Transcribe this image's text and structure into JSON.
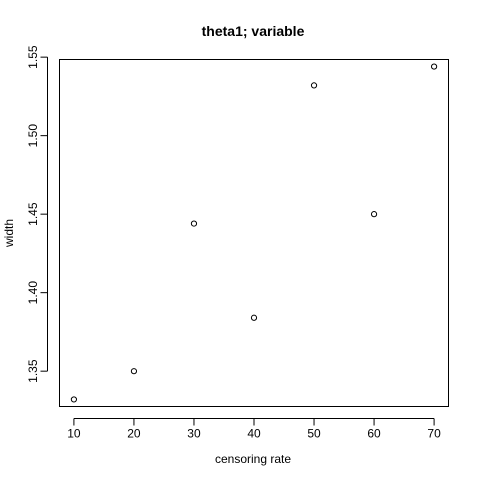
{
  "chart_data": {
    "type": "scatter",
    "title": "theta1; variable",
    "xlabel": "censoring rate",
    "ylabel": "width",
    "x": [
      10,
      20,
      30,
      40,
      50,
      60,
      70
    ],
    "y": [
      1.332,
      1.35,
      1.444,
      1.384,
      1.532,
      1.45,
      1.544
    ],
    "xlim": [
      7.6,
      72.4
    ],
    "ylim": [
      1.3275,
      1.5485
    ],
    "x_ticks": [
      10,
      20,
      30,
      40,
      50,
      60,
      70
    ],
    "x_tick_labels": [
      "10",
      "20",
      "30",
      "40",
      "50",
      "60",
      "70"
    ],
    "y_ticks": [
      1.35,
      1.4,
      1.45,
      1.5,
      1.55
    ],
    "y_tick_labels": [
      "1.35",
      "1.40",
      "1.45",
      "1.50",
      "1.55"
    ],
    "grid": false,
    "marker": "open-circle",
    "colors": {
      "points": "#000000",
      "axes": "#000000",
      "background": "#ffffff"
    }
  }
}
